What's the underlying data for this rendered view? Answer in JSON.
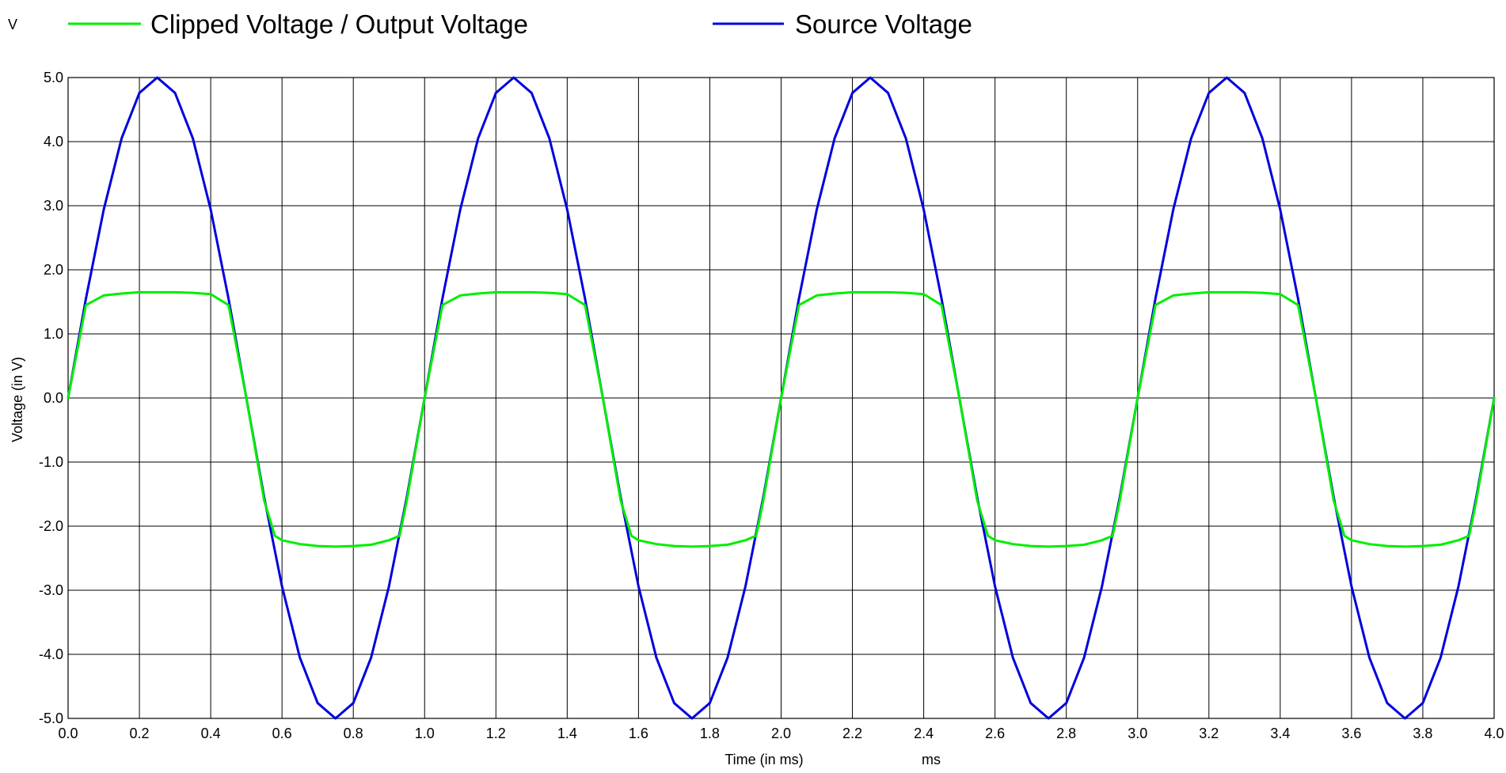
{
  "chart_data": {
    "type": "line",
    "title": "",
    "xlabel": "Time (in ms)",
    "ylabel": "Voltage (in V)",
    "x_unit": "ms",
    "y_unit": "V",
    "xlim": [
      0.0,
      4.0
    ],
    "ylim": [
      -5.0,
      5.0
    ],
    "x_ticks": [
      "0.0",
      "0.2",
      "0.4",
      "0.6",
      "0.8",
      "1.0",
      "1.2",
      "1.4",
      "1.6",
      "1.8",
      "2.0",
      "2.2",
      "2.4",
      "2.6",
      "2.8",
      "3.0",
      "3.2",
      "3.4",
      "3.6",
      "3.8",
      "4.0"
    ],
    "y_ticks": [
      "5.0",
      "4.0",
      "3.0",
      "2.0",
      "1.0",
      "0.0",
      "-1.0",
      "-2.0",
      "-3.0",
      "-4.0",
      "-5.0"
    ],
    "grid": true,
    "legend_position": "top",
    "series": [
      {
        "name": "Clipped Voltage / Output Voltage",
        "color": "#00ee00",
        "x": [
          0.0,
          0.05,
          0.1,
          0.15,
          0.2,
          0.25,
          0.3,
          0.35,
          0.4,
          0.45,
          0.5,
          0.55,
          0.58,
          0.6,
          0.65,
          0.7,
          0.75,
          0.8,
          0.85,
          0.9,
          0.93,
          0.95,
          1.0,
          1.05,
          1.1,
          1.15,
          1.2,
          1.25,
          1.3,
          1.35,
          1.4,
          1.45,
          1.5,
          1.55,
          1.58,
          1.6,
          1.65,
          1.7,
          1.75,
          1.8,
          1.85,
          1.9,
          1.93,
          1.95,
          2.0,
          2.05,
          2.1,
          2.15,
          2.2,
          2.25,
          2.3,
          2.35,
          2.4,
          2.45,
          2.5,
          2.55,
          2.58,
          2.6,
          2.65,
          2.7,
          2.75,
          2.8,
          2.85,
          2.9,
          2.93,
          2.95,
          3.0,
          3.05,
          3.1,
          3.15,
          3.2,
          3.25,
          3.3,
          3.35,
          3.4,
          3.45,
          3.5,
          3.55,
          3.58,
          3.6,
          3.65,
          3.7,
          3.75,
          3.8,
          3.85,
          3.9,
          3.93,
          3.95,
          4.0
        ],
        "y": [
          0.0,
          1.45,
          1.6,
          1.63,
          1.65,
          1.65,
          1.65,
          1.64,
          1.62,
          1.45,
          0.0,
          -1.6,
          -2.15,
          -2.22,
          -2.28,
          -2.31,
          -2.32,
          -2.31,
          -2.29,
          -2.22,
          -2.15,
          -1.6,
          0.0,
          1.45,
          1.6,
          1.63,
          1.65,
          1.65,
          1.65,
          1.64,
          1.62,
          1.45,
          0.0,
          -1.6,
          -2.15,
          -2.22,
          -2.28,
          -2.31,
          -2.32,
          -2.31,
          -2.29,
          -2.22,
          -2.15,
          -1.6,
          0.0,
          1.45,
          1.6,
          1.63,
          1.65,
          1.65,
          1.65,
          1.64,
          1.62,
          1.45,
          0.0,
          -1.6,
          -2.15,
          -2.22,
          -2.28,
          -2.31,
          -2.32,
          -2.31,
          -2.29,
          -2.22,
          -2.15,
          -1.6,
          0.0,
          1.45,
          1.6,
          1.63,
          1.65,
          1.65,
          1.65,
          1.64,
          1.62,
          1.45,
          0.0,
          -1.6,
          -2.15,
          -2.22,
          -2.28,
          -2.31,
          -2.32,
          -2.31,
          -2.29,
          -2.22,
          -2.15,
          -1.6,
          0.0
        ]
      },
      {
        "name": "Source Voltage",
        "color": "#0000dd",
        "x": [
          0.0,
          0.05,
          0.1,
          0.15,
          0.2,
          0.25,
          0.3,
          0.35,
          0.4,
          0.45,
          0.5,
          0.55,
          0.6,
          0.65,
          0.7,
          0.75,
          0.8,
          0.85,
          0.9,
          0.95,
          1.0,
          1.05,
          1.1,
          1.15,
          1.2,
          1.25,
          1.3,
          1.35,
          1.4,
          1.45,
          1.5,
          1.55,
          1.6,
          1.65,
          1.7,
          1.75,
          1.8,
          1.85,
          1.9,
          1.95,
          2.0,
          2.05,
          2.1,
          2.15,
          2.2,
          2.25,
          2.3,
          2.35,
          2.4,
          2.45,
          2.5,
          2.55,
          2.6,
          2.65,
          2.7,
          2.75,
          2.8,
          2.85,
          2.9,
          2.95,
          3.0,
          3.05,
          3.1,
          3.15,
          3.2,
          3.25,
          3.3,
          3.35,
          3.4,
          3.45,
          3.5,
          3.55,
          3.6,
          3.65,
          3.7,
          3.75,
          3.8,
          3.85,
          3.9,
          3.95,
          4.0
        ],
        "y": [
          0.0,
          1.55,
          2.94,
          4.05,
          4.76,
          5.0,
          4.76,
          4.05,
          2.94,
          1.55,
          0.0,
          -1.55,
          -2.94,
          -4.05,
          -4.76,
          -5.0,
          -4.76,
          -4.05,
          -2.94,
          -1.55,
          0.0,
          1.55,
          2.94,
          4.05,
          4.76,
          5.0,
          4.76,
          4.05,
          2.94,
          1.55,
          0.0,
          -1.55,
          -2.94,
          -4.05,
          -4.76,
          -5.0,
          -4.76,
          -4.05,
          -2.94,
          -1.55,
          0.0,
          1.55,
          2.94,
          4.05,
          4.76,
          5.0,
          4.76,
          4.05,
          2.94,
          1.55,
          0.0,
          -1.55,
          -2.94,
          -4.05,
          -4.76,
          -5.0,
          -4.76,
          -4.05,
          -2.94,
          -1.55,
          0.0,
          1.55,
          2.94,
          4.05,
          4.76,
          5.0,
          4.76,
          4.05,
          2.94,
          1.55,
          0.0,
          -1.55,
          -2.94,
          -4.05,
          -4.76,
          -5.0,
          -4.76,
          -4.05,
          -2.94,
          -1.55,
          0.0
        ]
      }
    ]
  }
}
